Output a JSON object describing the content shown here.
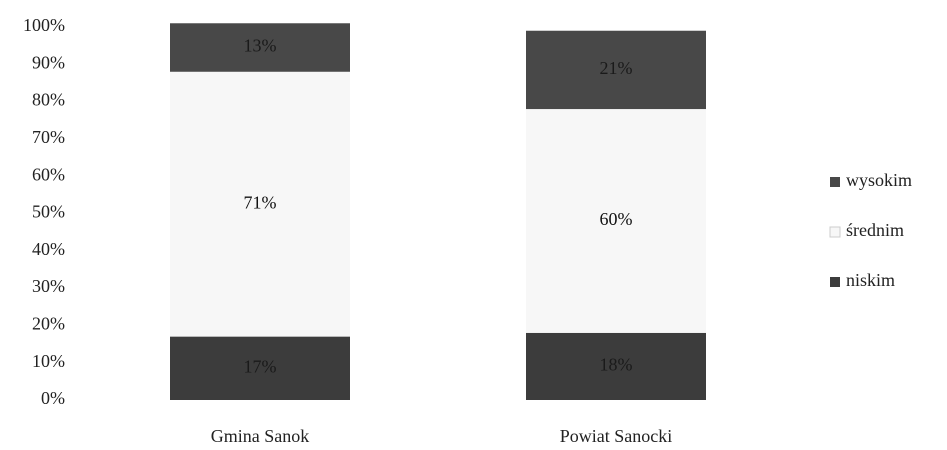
{
  "chart_data": {
    "type": "stacked_bar",
    "categories": [
      "Gmina Sanok",
      "Powiat Sanocki"
    ],
    "series": [
      {
        "name": "niskim",
        "color": "#3c3c3c",
        "values": [
          17,
          18
        ],
        "value_labels": [
          "17%",
          "18%"
        ]
      },
      {
        "name": "średnim",
        "color": "#f7f7f7",
        "values": [
          71,
          60
        ],
        "value_labels": [
          "71%",
          "60%"
        ]
      },
      {
        "name": "wysokim",
        "color": "#484848",
        "values": [
          13,
          21
        ],
        "value_labels": [
          "13%",
          "21%"
        ]
      }
    ],
    "ylim": [
      0,
      100
    ],
    "yticks": [
      {
        "value": 0,
        "label": "0%"
      },
      {
        "value": 10,
        "label": "10%"
      },
      {
        "value": 20,
        "label": "20%"
      },
      {
        "value": 30,
        "label": "30%"
      },
      {
        "value": 40,
        "label": "40%"
      },
      {
        "value": 50,
        "label": "50%"
      },
      {
        "value": 60,
        "label": "60%"
      },
      {
        "value": 70,
        "label": "70%"
      },
      {
        "value": 80,
        "label": "80%"
      },
      {
        "value": 90,
        "label": "90%"
      },
      {
        "value": 100,
        "label": "100%"
      }
    ],
    "legend": "right"
  }
}
